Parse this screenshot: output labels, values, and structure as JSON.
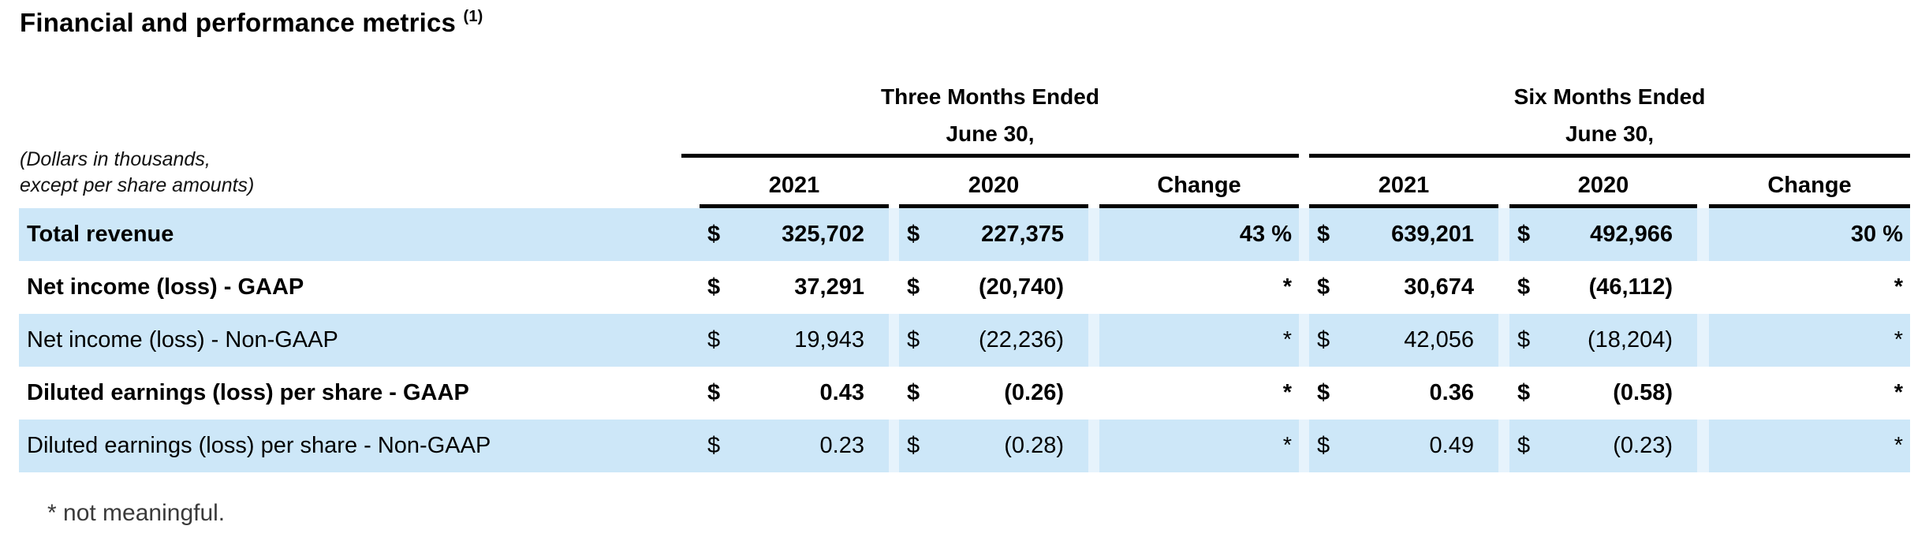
{
  "title": {
    "text": "Financial and performance metrics",
    "superscript": "(1)"
  },
  "subtitle": {
    "line1": "(Dollars in thousands,",
    "line2": "except per share amounts)"
  },
  "groups": [
    {
      "line1": "Three Months Ended",
      "line2": "June 30,",
      "cols": [
        "2021",
        "2020",
        "Change"
      ]
    },
    {
      "line1": "Six Months Ended",
      "line2": "June 30,",
      "cols": [
        "2021",
        "2020",
        "Change"
      ]
    }
  ],
  "rows": [
    {
      "label": "Total revenue",
      "cells": [
        {
          "currency": "$",
          "value": "325,702"
        },
        {
          "currency": "$",
          "value": "227,375"
        },
        {
          "change": "43 %"
        },
        {
          "currency": "$",
          "value": "639,201"
        },
        {
          "currency": "$",
          "value": "492,966"
        },
        {
          "change": "30 %"
        }
      ]
    },
    {
      "label": "Net income (loss) - GAAP",
      "cells": [
        {
          "currency": "$",
          "value": "37,291"
        },
        {
          "currency": "$",
          "value": "(20,740)"
        },
        {
          "change": "*"
        },
        {
          "currency": "$",
          "value": "30,674"
        },
        {
          "currency": "$",
          "value": "(46,112)"
        },
        {
          "change": "*"
        }
      ]
    },
    {
      "label": "Net income (loss) - Non-GAAP",
      "cells": [
        {
          "currency": "$",
          "value": "19,943"
        },
        {
          "currency": "$",
          "value": "(22,236)"
        },
        {
          "change": "*"
        },
        {
          "currency": "$",
          "value": "42,056"
        },
        {
          "currency": "$",
          "value": "(18,204)"
        },
        {
          "change": "*"
        }
      ]
    },
    {
      "label": "Diluted earnings (loss) per share - GAAP",
      "cells": [
        {
          "currency": "$",
          "value": "0.43"
        },
        {
          "currency": "$",
          "value": "(0.26)"
        },
        {
          "change": "*"
        },
        {
          "currency": "$",
          "value": "0.36"
        },
        {
          "currency": "$",
          "value": "(0.58)"
        },
        {
          "change": "*"
        }
      ]
    },
    {
      "label": "Diluted earnings (loss) per share - Non-GAAP",
      "cells": [
        {
          "currency": "$",
          "value": "0.23"
        },
        {
          "currency": "$",
          "value": "(0.28)"
        },
        {
          "change": "*"
        },
        {
          "currency": "$",
          "value": "0.49"
        },
        {
          "currency": "$",
          "value": "(0.23)"
        },
        {
          "change": "*"
        }
      ]
    }
  ],
  "footnote": "* not meaningful.",
  "colors": {
    "stripe": "#cde7f8",
    "rule": "#000000",
    "text": "#000000"
  }
}
